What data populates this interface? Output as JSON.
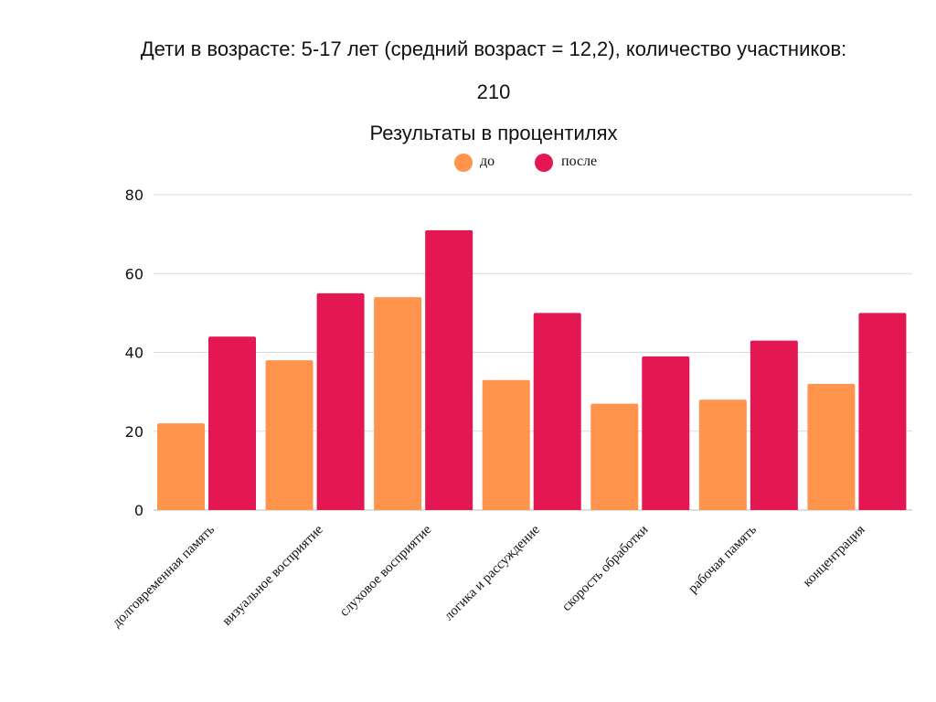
{
  "header": {
    "subtitle_line1": "Дети в возрасте: 5-17 лет (средний возраст = 12,2), количество участников:",
    "subtitle_line2": "210"
  },
  "colors": {
    "before": "#FF944D",
    "after": "#E31853",
    "grid": "#d9d9d9",
    "baseline": "#bdbdbd"
  },
  "chart_data": {
    "type": "bar",
    "title": "Результаты в процентилях",
    "xlabel": "",
    "ylabel": "",
    "ylim": [
      0,
      80
    ],
    "yticks": [
      0,
      20,
      40,
      60,
      80
    ],
    "grid": true,
    "legend_position": "top-center",
    "categories": [
      "долговременная память",
      "визуальное восприятие",
      "слуховое восприятие",
      "логика и рассуждение",
      "скорость обработки",
      "рабочая память",
      "концентрация"
    ],
    "series": [
      {
        "name": "до",
        "values": [
          22,
          38,
          54,
          33,
          27,
          28,
          32
        ]
      },
      {
        "name": "после",
        "values": [
          44,
          55,
          71,
          50,
          39,
          43,
          50
        ]
      }
    ]
  }
}
